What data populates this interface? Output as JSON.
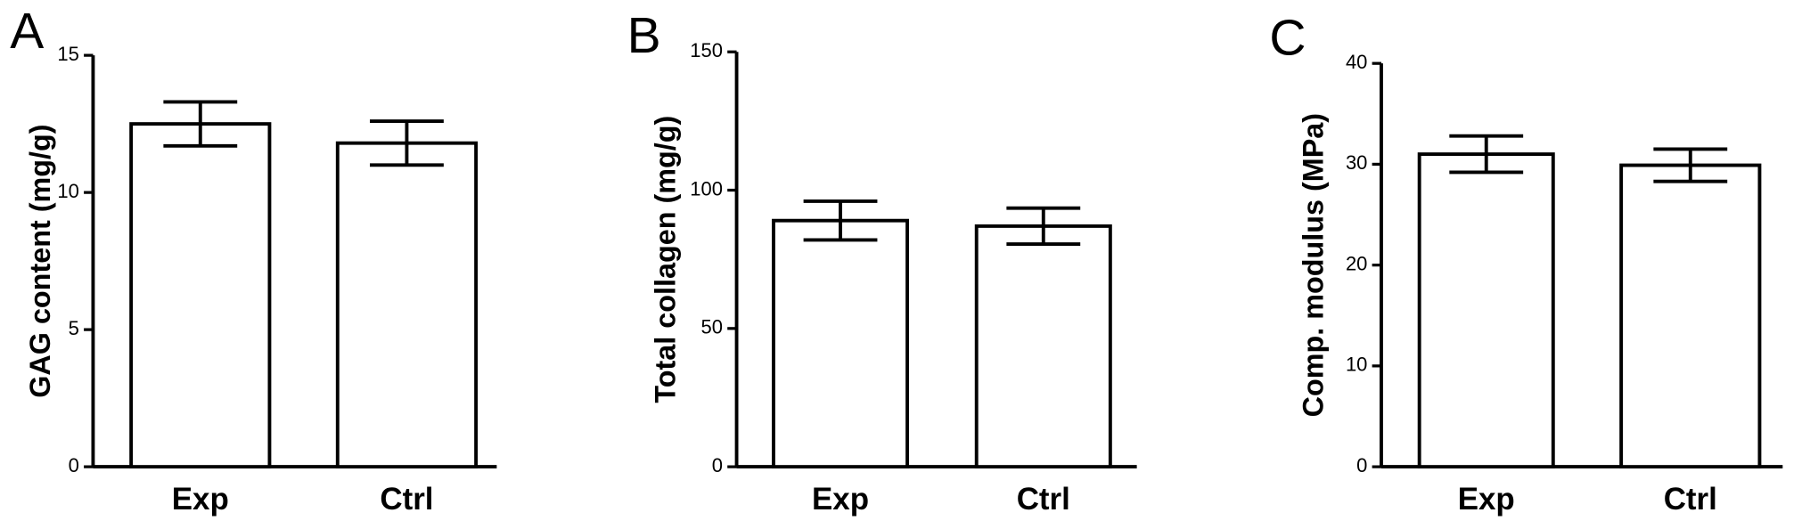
{
  "chart_data": [
    {
      "type": "bar",
      "label": "A",
      "ylabel": "GAG content (mg/g)",
      "categories": [
        "Exp",
        "Ctrl"
      ],
      "values": [
        12.5,
        11.8
      ],
      "errors": [
        0.8,
        0.8
      ],
      "color": "#ffffff",
      "ylim": [
        0,
        15
      ],
      "yticks": [
        0,
        5,
        10,
        15
      ]
    },
    {
      "type": "bar",
      "label": "B",
      "ylabel": "Total collagen (mg/g)",
      "categories": [
        "Exp",
        "Ctrl"
      ],
      "values": [
        89,
        87
      ],
      "errors": [
        7,
        6.5
      ],
      "color": "#ffffff",
      "ylim": [
        0,
        150
      ],
      "yticks": [
        0,
        50,
        100,
        150
      ]
    },
    {
      "type": "bar",
      "label": "C",
      "ylabel": "Comp. modulus (MPa)",
      "categories": [
        "Exp",
        "Ctrl"
      ],
      "values": [
        31,
        29.9
      ],
      "errors": [
        1.8,
        1.6
      ],
      "color": "#ffffff",
      "ylim": [
        0,
        40
      ],
      "yticks": [
        0,
        10,
        20,
        30,
        40
      ]
    }
  ]
}
